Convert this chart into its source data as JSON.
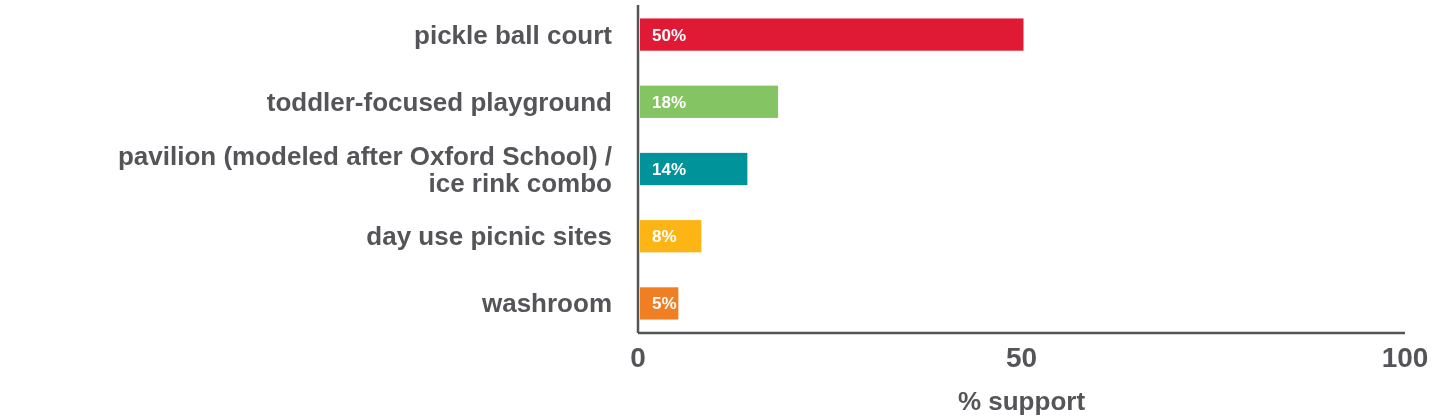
{
  "chart_data": {
    "type": "bar",
    "orientation": "horizontal",
    "categories": [
      "pickle ball court",
      "toddler-focused playground",
      "pavilion (modeled after Oxford School) / ice rink combo",
      "day use picnic sites",
      "washroom"
    ],
    "values": [
      50,
      18,
      14,
      8,
      5
    ],
    "colors": [
      "#e01a35",
      "#84c462",
      "#00939a",
      "#fdb515",
      "#f07f23"
    ],
    "xlim": [
      0,
      100
    ],
    "xticks": [
      0,
      50,
      100
    ],
    "xlabel": "% support",
    "data_labels": true,
    "value_labels": [
      "50%",
      "18%",
      "14%",
      "8%",
      "5%"
    ],
    "grid": false
  }
}
